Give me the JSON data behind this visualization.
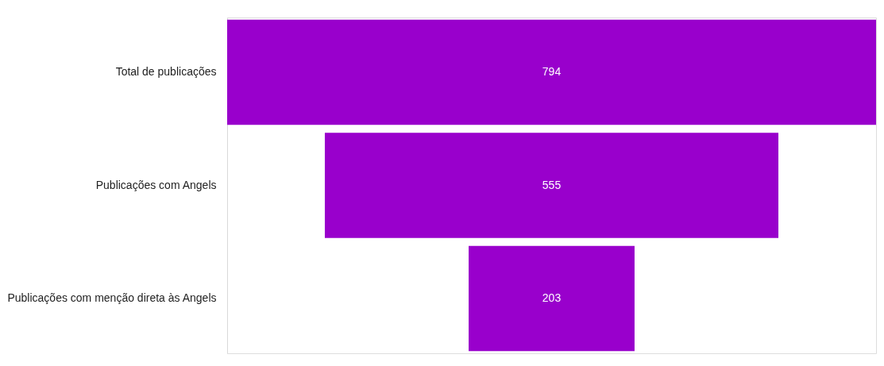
{
  "chart_data": {
    "type": "other",
    "categories": [
      "Total de publicações",
      "Publicações com Angels",
      "Publicações com menção direta às Angels"
    ],
    "values": [
      794,
      555,
      203
    ],
    "color": "#9900cc",
    "data_labels": true
  }
}
